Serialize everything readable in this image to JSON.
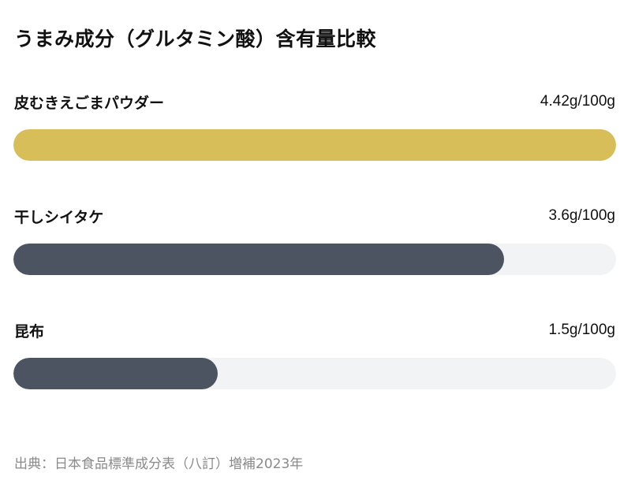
{
  "chart_data": {
    "type": "bar",
    "orientation": "horizontal",
    "title": "うまみ成分（グルタミン酸）含有量比較",
    "unit": "g/100g",
    "xlim": [
      0,
      4.42
    ],
    "categories": [
      "皮むきえごまパウダー",
      "干しシイタケ",
      "昆布"
    ],
    "values": [
      4.42,
      3.6,
      1.5
    ],
    "value_labels": [
      "4.42g/100g",
      "3.6g/100g",
      "1.5g/100g"
    ],
    "bar_colors": [
      "#d8be58",
      "#4d5461",
      "#4d5461"
    ],
    "track_color": "#f2f3f5",
    "grid": false,
    "legend": "none"
  },
  "source_note": "出典：日本食品標準成分表（八訂）増補2023年"
}
